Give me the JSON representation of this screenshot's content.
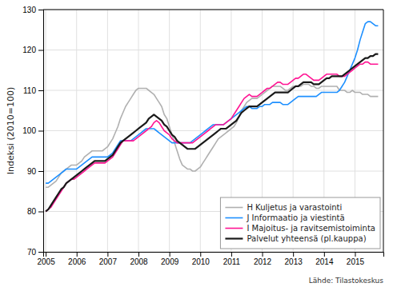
{
  "chart_data": {
    "type": "line",
    "ylabel": "Indeksi (2010=100)",
    "annotations": [
      "Lähde: Tilastokeskus"
    ],
    "xlim": [
      2004.92,
      2015.92
    ],
    "xticks": [
      2005,
      2006,
      2007,
      2008,
      2009,
      2010,
      2011,
      2012,
      2013,
      2014,
      2015
    ],
    "ylim": [
      70,
      130
    ],
    "yticks": [
      70,
      80,
      90,
      100,
      110,
      120,
      130
    ],
    "grid": true,
    "legend": "lower right",
    "x": [
      2005.0,
      2005.083,
      2005.167,
      2005.25,
      2005.333,
      2005.417,
      2005.5,
      2005.583,
      2005.667,
      2005.75,
      2005.833,
      2005.917,
      2006.0,
      2006.083,
      2006.167,
      2006.25,
      2006.333,
      2006.417,
      2006.5,
      2006.583,
      2006.667,
      2006.75,
      2006.833,
      2006.917,
      2007.0,
      2007.083,
      2007.167,
      2007.25,
      2007.333,
      2007.417,
      2007.5,
      2007.583,
      2007.667,
      2007.75,
      2007.833,
      2007.917,
      2008.0,
      2008.083,
      2008.167,
      2008.25,
      2008.333,
      2008.417,
      2008.5,
      2008.583,
      2008.667,
      2008.75,
      2008.833,
      2008.917,
      2009.0,
      2009.083,
      2009.167,
      2009.25,
      2009.333,
      2009.417,
      2009.5,
      2009.583,
      2009.667,
      2009.75,
      2009.833,
      2009.917,
      2010.0,
      2010.083,
      2010.167,
      2010.25,
      2010.333,
      2010.417,
      2010.5,
      2010.583,
      2010.667,
      2010.75,
      2010.833,
      2010.917,
      2011.0,
      2011.083,
      2011.167,
      2011.25,
      2011.333,
      2011.417,
      2011.5,
      2011.583,
      2011.667,
      2011.75,
      2011.833,
      2011.917,
      2012.0,
      2012.083,
      2012.167,
      2012.25,
      2012.333,
      2012.417,
      2012.5,
      2012.583,
      2012.667,
      2012.75,
      2012.833,
      2012.917,
      2013.0,
      2013.083,
      2013.167,
      2013.25,
      2013.333,
      2013.417,
      2013.5,
      2013.583,
      2013.667,
      2013.75,
      2013.833,
      2013.917,
      2014.0,
      2014.083,
      2014.167,
      2014.25,
      2014.333,
      2014.417,
      2014.5,
      2014.583,
      2014.667,
      2014.75,
      2014.833,
      2014.917,
      2015.0,
      2015.083,
      2015.167,
      2015.25,
      2015.333,
      2015.417,
      2015.5,
      2015.583,
      2015.667,
      2015.75
    ],
    "series": [
      {
        "name": "H Kuljetus ja varastointi",
        "color": "#b0b0b0",
        "values": [
          86.0,
          86.0,
          86.5,
          87.0,
          87.5,
          88.5,
          89.5,
          90.0,
          90.5,
          91.0,
          91.5,
          91.5,
          91.5,
          92.0,
          92.5,
          93.5,
          94.0,
          94.5,
          95.0,
          95.0,
          95.0,
          95.0,
          95.0,
          95.5,
          96.0,
          97.0,
          98.0,
          99.5,
          101.0,
          103.0,
          104.5,
          106.0,
          107.0,
          108.0,
          109.0,
          110.0,
          110.5,
          110.5,
          110.5,
          110.5,
          110.0,
          109.5,
          109.0,
          108.0,
          107.0,
          106.0,
          104.0,
          103.0,
          101.0,
          99.0,
          97.0,
          95.0,
          93.0,
          91.5,
          91.0,
          90.5,
          90.5,
          90.0,
          90.0,
          90.5,
          91.0,
          92.0,
          93.0,
          94.0,
          95.0,
          96.0,
          97.0,
          98.0,
          98.5,
          99.0,
          99.5,
          100.0,
          100.5,
          101.0,
          102.0,
          103.5,
          105.0,
          106.0,
          107.0,
          107.5,
          108.0,
          108.0,
          108.0,
          108.5,
          109.0,
          109.5,
          110.0,
          110.5,
          111.0,
          111.0,
          111.0,
          111.0,
          110.5,
          110.0,
          110.0,
          110.5,
          111.0,
          111.0,
          111.0,
          111.0,
          111.5,
          111.5,
          111.5,
          111.0,
          111.0,
          110.5,
          110.5,
          111.0,
          111.0,
          111.0,
          111.0,
          111.0,
          111.0,
          111.0,
          110.0,
          110.0,
          110.0,
          109.5,
          109.5,
          110.0,
          109.5,
          109.5,
          109.5,
          109.0,
          109.0,
          109.0,
          108.5,
          108.5,
          108.5,
          108.5
        ]
      },
      {
        "name": "J Informaatio ja viestintä",
        "color": "#1e90ff",
        "values": [
          87.0,
          87.0,
          87.5,
          88.0,
          88.5,
          89.0,
          89.5,
          90.0,
          90.5,
          90.5,
          90.5,
          90.5,
          90.5,
          91.0,
          91.5,
          92.0,
          92.5,
          93.0,
          93.5,
          93.5,
          93.5,
          93.5,
          93.5,
          93.5,
          93.5,
          94.0,
          94.5,
          95.5,
          96.5,
          97.5,
          97.5,
          97.5,
          97.5,
          97.5,
          98.0,
          98.5,
          99.0,
          99.5,
          100.0,
          100.5,
          100.5,
          100.5,
          100.5,
          100.0,
          99.5,
          99.0,
          98.5,
          98.0,
          97.5,
          97.0,
          97.0,
          97.0,
          97.0,
          97.0,
          97.0,
          97.0,
          97.0,
          97.5,
          98.0,
          98.5,
          99.0,
          99.5,
          100.0,
          100.5,
          101.0,
          101.5,
          101.5,
          101.5,
          101.5,
          101.5,
          102.0,
          102.5,
          103.0,
          103.5,
          104.0,
          104.5,
          105.0,
          105.5,
          106.0,
          106.0,
          105.5,
          105.5,
          105.5,
          106.0,
          106.0,
          106.5,
          106.5,
          106.5,
          107.0,
          107.0,
          107.0,
          107.0,
          106.5,
          106.5,
          106.5,
          107.0,
          107.5,
          108.0,
          108.5,
          108.5,
          108.5,
          108.5,
          108.5,
          108.5,
          108.5,
          108.5,
          109.0,
          109.5,
          109.5,
          109.5,
          109.5,
          109.5,
          109.5,
          109.5,
          110.0,
          111.0,
          112.0,
          113.5,
          115.0,
          116.5,
          118.0,
          120.0,
          122.5,
          124.5,
          126.5,
          127.0,
          127.0,
          126.5,
          126.0,
          126.0
        ]
      },
      {
        "name": "I Majoitus- ja ravitsemistoiminta",
        "color": "#ff1493",
        "values": [
          80.0,
          80.5,
          81.0,
          82.0,
          83.0,
          84.0,
          85.0,
          86.0,
          87.0,
          87.5,
          88.0,
          88.0,
          88.5,
          89.0,
          89.5,
          90.0,
          90.5,
          91.0,
          91.5,
          92.0,
          92.0,
          92.0,
          92.0,
          92.0,
          92.5,
          93.0,
          93.5,
          94.5,
          95.5,
          96.5,
          97.5,
          97.5,
          97.5,
          97.5,
          97.5,
          98.0,
          98.5,
          99.0,
          99.5,
          100.0,
          100.5,
          101.0,
          102.0,
          102.5,
          102.0,
          101.0,
          100.0,
          99.5,
          99.0,
          98.0,
          97.5,
          97.0,
          97.0,
          97.0,
          97.0,
          97.0,
          97.0,
          97.0,
          97.5,
          98.0,
          98.5,
          99.0,
          99.5,
          100.0,
          100.5,
          101.0,
          101.5,
          101.5,
          101.5,
          101.5,
          102.0,
          102.5,
          103.0,
          104.0,
          105.0,
          106.0,
          107.0,
          108.0,
          108.5,
          109.0,
          108.5,
          108.5,
          108.5,
          109.0,
          109.5,
          110.0,
          110.5,
          110.5,
          111.0,
          111.5,
          112.0,
          112.0,
          111.5,
          111.5,
          111.5,
          112.0,
          112.5,
          113.0,
          113.0,
          113.5,
          114.0,
          114.0,
          113.5,
          113.0,
          112.5,
          112.5,
          112.5,
          113.0,
          113.5,
          114.0,
          114.0,
          114.0,
          114.0,
          114.0,
          113.5,
          113.5,
          113.5,
          114.0,
          114.5,
          115.0,
          115.5,
          116.0,
          116.5,
          116.5,
          117.0,
          117.0,
          116.5,
          116.5,
          116.5,
          116.5
        ]
      },
      {
        "name": "Palvelut yhteensä  (pl.kauppa)",
        "color": "#1a1a1a",
        "values": [
          80.0,
          80.5,
          81.5,
          82.5,
          83.5,
          84.5,
          85.5,
          86.0,
          87.0,
          87.5,
          88.0,
          88.5,
          89.0,
          89.5,
          90.0,
          90.5,
          91.0,
          91.5,
          92.0,
          92.5,
          92.5,
          92.5,
          92.5,
          92.5,
          93.0,
          93.5,
          94.0,
          95.0,
          96.0,
          97.0,
          97.5,
          98.0,
          98.5,
          99.0,
          99.5,
          100.0,
          100.5,
          101.0,
          101.5,
          102.0,
          103.0,
          103.5,
          104.0,
          103.5,
          103.0,
          102.5,
          101.5,
          101.0,
          100.0,
          99.0,
          98.5,
          97.5,
          97.0,
          96.5,
          96.0,
          95.5,
          95.5,
          95.5,
          95.5,
          96.0,
          96.5,
          97.0,
          97.5,
          98.0,
          98.5,
          99.0,
          99.5,
          100.0,
          100.5,
          100.5,
          100.5,
          101.0,
          101.5,
          102.0,
          102.5,
          103.5,
          104.5,
          105.0,
          105.5,
          106.0,
          106.0,
          106.0,
          106.0,
          106.5,
          107.0,
          107.5,
          108.0,
          108.5,
          109.0,
          109.5,
          109.5,
          109.5,
          109.5,
          109.5,
          109.5,
          110.0,
          110.5,
          111.0,
          111.0,
          111.5,
          112.0,
          112.0,
          112.0,
          112.0,
          111.5,
          111.5,
          111.5,
          112.0,
          112.5,
          113.0,
          113.0,
          113.5,
          113.5,
          113.5,
          113.5,
          113.5,
          114.0,
          114.5,
          115.0,
          115.5,
          116.0,
          116.5,
          117.0,
          117.5,
          118.0,
          118.0,
          118.5,
          118.5,
          119.0,
          119.0
        ]
      }
    ]
  }
}
